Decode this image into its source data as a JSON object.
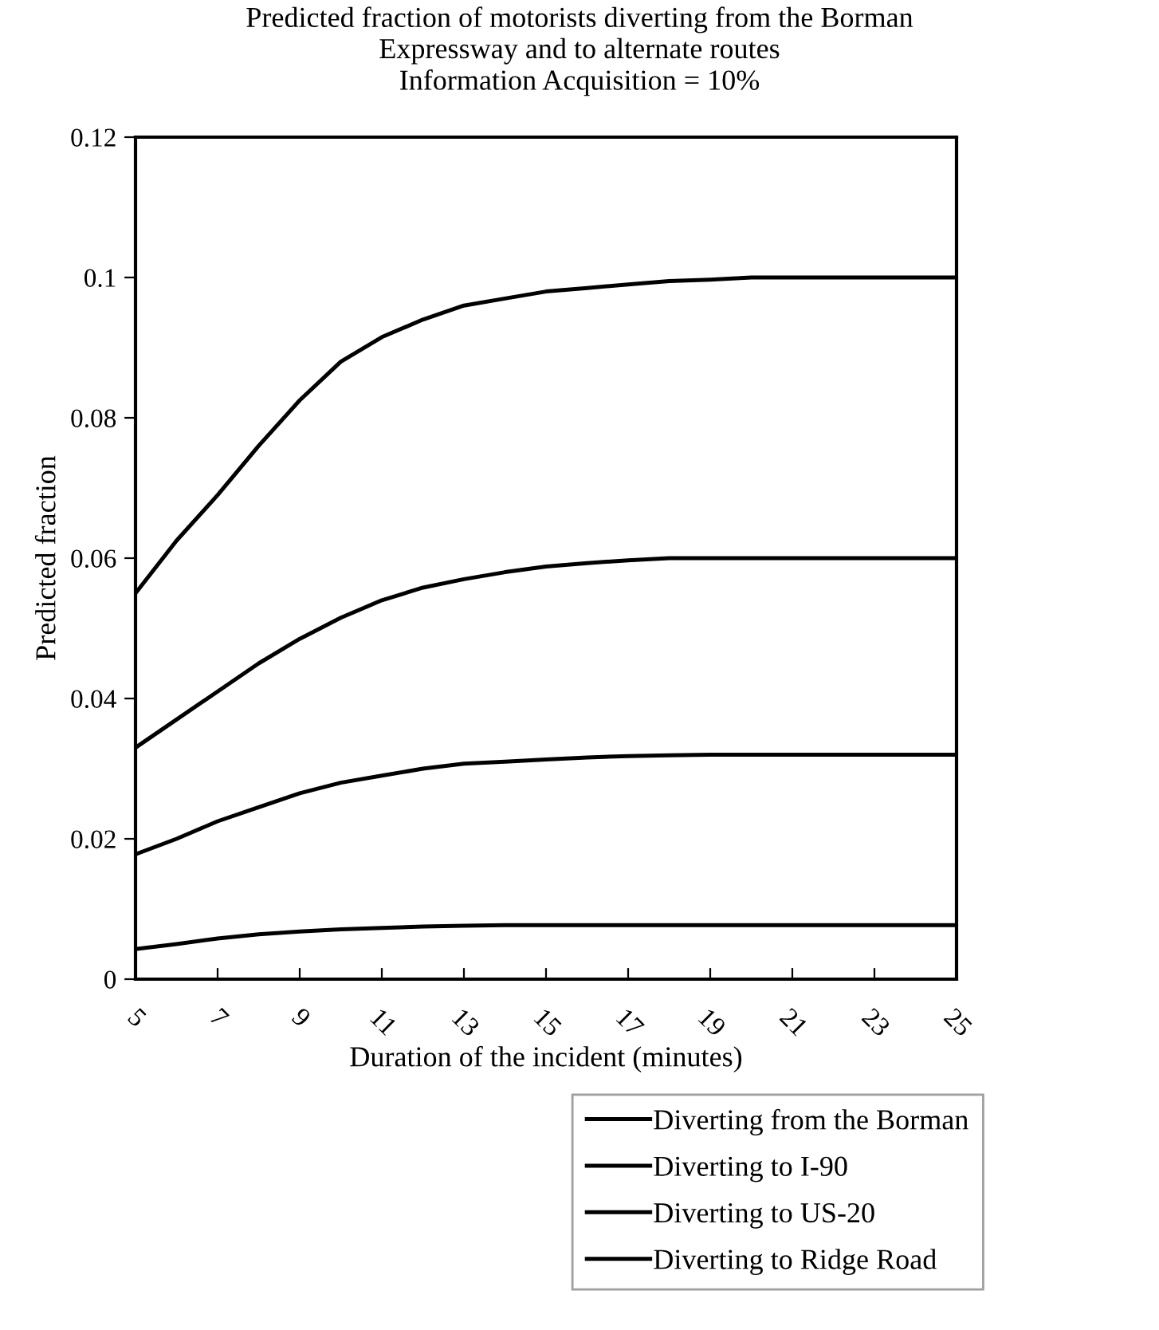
{
  "chart_data": {
    "type": "line",
    "title": "Predicted fraction of motorists diverting from the Borman\nExpressway and to alternate routes\nInformation Acquisition = 10%",
    "xlabel": "Duration of the incident (minutes)",
    "ylabel": "Predicted fraction",
    "x": [
      5,
      6,
      7,
      8,
      9,
      10,
      11,
      12,
      13,
      14,
      15,
      16,
      17,
      18,
      19,
      20,
      21,
      22,
      23,
      24,
      25
    ],
    "series": [
      {
        "name": "Diverting from the Borman",
        "color": "#000000",
        "values": [
          0.055,
          0.0625,
          0.069,
          0.076,
          0.0825,
          0.088,
          0.0915,
          0.094,
          0.096,
          0.097,
          0.098,
          0.0985,
          0.099,
          0.0995,
          0.0997,
          0.1,
          0.1,
          0.1,
          0.1,
          0.1,
          0.1
        ]
      },
      {
        "name": "Diverting to I-90",
        "color": "#000000",
        "values": [
          0.033,
          0.037,
          0.041,
          0.045,
          0.0485,
          0.0515,
          0.054,
          0.0558,
          0.057,
          0.058,
          0.0588,
          0.0593,
          0.0597,
          0.06,
          0.06,
          0.06,
          0.06,
          0.06,
          0.06,
          0.06,
          0.06
        ]
      },
      {
        "name": "Diverting to US-20",
        "color": "#000000",
        "values": [
          0.0178,
          0.02,
          0.0225,
          0.0245,
          0.0265,
          0.028,
          0.029,
          0.03,
          0.0307,
          0.031,
          0.0313,
          0.0316,
          0.0318,
          0.0319,
          0.032,
          0.032,
          0.032,
          0.032,
          0.032,
          0.032,
          0.032
        ]
      },
      {
        "name": "Diverting to Ridge Road",
        "color": "#000000",
        "values": [
          0.0043,
          0.005,
          0.0058,
          0.0064,
          0.0068,
          0.0071,
          0.0073,
          0.0075,
          0.0076,
          0.0077,
          0.0077,
          0.0077,
          0.0077,
          0.0077,
          0.0077,
          0.0077,
          0.0077,
          0.0077,
          0.0077,
          0.0077,
          0.0077
        ]
      }
    ],
    "xlim": [
      5,
      25
    ],
    "xticks": [
      5,
      7,
      9,
      11,
      13,
      15,
      17,
      19,
      21,
      23,
      25
    ],
    "ylim": [
      0,
      0.12
    ],
    "yticks": [
      0,
      0.02,
      0.04,
      0.06,
      0.08,
      0.1,
      0.12
    ],
    "grid": false,
    "legend": "bottom right",
    "marker": "none",
    "line_style": "solid"
  }
}
